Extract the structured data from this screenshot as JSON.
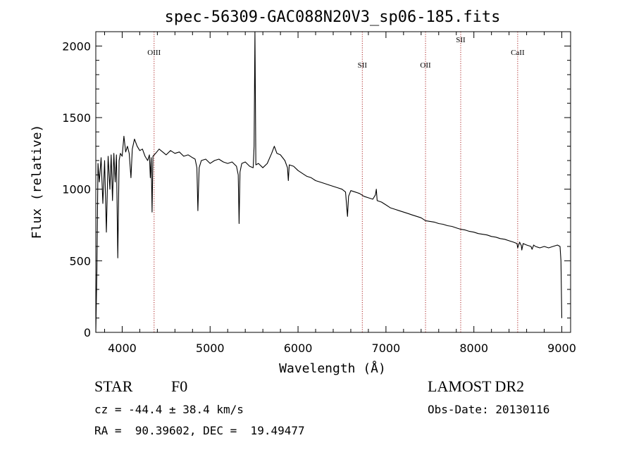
{
  "chart_data": {
    "type": "line",
    "title": "spec-56309-GAC088N20V3_sp06-185.fits",
    "xlabel": "Wavelength (Å)",
    "ylabel": "Flux (relative)",
    "xlim": [
      3700,
      9100
    ],
    "ylim": [
      0,
      2100
    ],
    "x_ticks": [
      4000,
      5000,
      6000,
      7000,
      8000,
      9000
    ],
    "y_ticks": [
      0,
      500,
      1000,
      1500,
      2000
    ],
    "grid": false,
    "series": [
      {
        "color": "#000000",
        "points": [
          [
            3700,
            0
          ],
          [
            3712,
            420
          ],
          [
            3725,
            1180
          ],
          [
            3740,
            1050
          ],
          [
            3760,
            1220
          ],
          [
            3780,
            900
          ],
          [
            3800,
            1200
          ],
          [
            3820,
            700
          ],
          [
            3840,
            1230
          ],
          [
            3860,
            1000
          ],
          [
            3875,
            1240
          ],
          [
            3890,
            920
          ],
          [
            3905,
            1250
          ],
          [
            3920,
            1050
          ],
          [
            3935,
            1240
          ],
          [
            3950,
            520
          ],
          [
            3965,
            1200
          ],
          [
            3980,
            1250
          ],
          [
            4000,
            1230
          ],
          [
            4020,
            1370
          ],
          [
            4040,
            1260
          ],
          [
            4060,
            1300
          ],
          [
            4080,
            1250
          ],
          [
            4100,
            1080
          ],
          [
            4115,
            1280
          ],
          [
            4140,
            1350
          ],
          [
            4170,
            1300
          ],
          [
            4200,
            1270
          ],
          [
            4230,
            1280
          ],
          [
            4260,
            1230
          ],
          [
            4290,
            1200
          ],
          [
            4310,
            1240
          ],
          [
            4320,
            1080
          ],
          [
            4330,
            1220
          ],
          [
            4340,
            840
          ],
          [
            4350,
            1230
          ],
          [
            4380,
            1250
          ],
          [
            4420,
            1280
          ],
          [
            4460,
            1260
          ],
          [
            4500,
            1240
          ],
          [
            4550,
            1270
          ],
          [
            4600,
            1250
          ],
          [
            4650,
            1260
          ],
          [
            4700,
            1230
          ],
          [
            4750,
            1240
          ],
          [
            4800,
            1220
          ],
          [
            4830,
            1210
          ],
          [
            4850,
            1150
          ],
          [
            4861,
            850
          ],
          [
            4875,
            1150
          ],
          [
            4900,
            1200
          ],
          [
            4950,
            1210
          ],
          [
            5000,
            1180
          ],
          [
            5050,
            1200
          ],
          [
            5100,
            1210
          ],
          [
            5150,
            1190
          ],
          [
            5200,
            1180
          ],
          [
            5250,
            1190
          ],
          [
            5300,
            1160
          ],
          [
            5320,
            1100
          ],
          [
            5330,
            760
          ],
          [
            5340,
            1120
          ],
          [
            5360,
            1180
          ],
          [
            5400,
            1190
          ],
          [
            5450,
            1160
          ],
          [
            5490,
            1150
          ],
          [
            5500,
            1300
          ],
          [
            5510,
            2100
          ],
          [
            5520,
            1170
          ],
          [
            5550,
            1180
          ],
          [
            5600,
            1150
          ],
          [
            5650,
            1180
          ],
          [
            5700,
            1250
          ],
          [
            5730,
            1300
          ],
          [
            5760,
            1250
          ],
          [
            5800,
            1240
          ],
          [
            5850,
            1200
          ],
          [
            5880,
            1150
          ],
          [
            5890,
            1060
          ],
          [
            5900,
            1170
          ],
          [
            5950,
            1160
          ],
          [
            6000,
            1130
          ],
          [
            6050,
            1110
          ],
          [
            6100,
            1090
          ],
          [
            6150,
            1080
          ],
          [
            6200,
            1060
          ],
          [
            6250,
            1050
          ],
          [
            6300,
            1040
          ],
          [
            6350,
            1030
          ],
          [
            6400,
            1020
          ],
          [
            6450,
            1010
          ],
          [
            6500,
            1000
          ],
          [
            6540,
            980
          ],
          [
            6555,
            870
          ],
          [
            6563,
            810
          ],
          [
            6575,
            950
          ],
          [
            6600,
            990
          ],
          [
            6650,
            980
          ],
          [
            6700,
            970
          ],
          [
            6750,
            950
          ],
          [
            6800,
            940
          ],
          [
            6850,
            930
          ],
          [
            6880,
            960
          ],
          [
            6890,
            1000
          ],
          [
            6900,
            920
          ],
          [
            6950,
            910
          ],
          [
            7000,
            890
          ],
          [
            7050,
            870
          ],
          [
            7100,
            860
          ],
          [
            7150,
            850
          ],
          [
            7200,
            840
          ],
          [
            7250,
            830
          ],
          [
            7300,
            820
          ],
          [
            7350,
            810
          ],
          [
            7400,
            800
          ],
          [
            7450,
            780
          ],
          [
            7500,
            775
          ],
          [
            7550,
            770
          ],
          [
            7600,
            760
          ],
          [
            7650,
            755
          ],
          [
            7700,
            745
          ],
          [
            7750,
            740
          ],
          [
            7800,
            730
          ],
          [
            7850,
            720
          ],
          [
            7900,
            715
          ],
          [
            7950,
            705
          ],
          [
            8000,
            700
          ],
          [
            8050,
            690
          ],
          [
            8100,
            685
          ],
          [
            8150,
            680
          ],
          [
            8200,
            670
          ],
          [
            8250,
            665
          ],
          [
            8300,
            655
          ],
          [
            8350,
            650
          ],
          [
            8400,
            640
          ],
          [
            8450,
            630
          ],
          [
            8490,
            620
          ],
          [
            8498,
            590
          ],
          [
            8520,
            630
          ],
          [
            8540,
            605
          ],
          [
            8545,
            575
          ],
          [
            8560,
            620
          ],
          [
            8600,
            610
          ],
          [
            8650,
            600
          ],
          [
            8662,
            580
          ],
          [
            8680,
            610
          ],
          [
            8700,
            600
          ],
          [
            8750,
            590
          ],
          [
            8800,
            600
          ],
          [
            8850,
            590
          ],
          [
            8900,
            600
          ],
          [
            8950,
            610
          ],
          [
            8980,
            600
          ],
          [
            8990,
            500
          ],
          [
            9000,
            100
          ]
        ]
      }
    ],
    "lines": [
      {
        "label": "OIII",
        "x": 4363,
        "color": "#aa2222",
        "label_row": 1
      },
      {
        "label": "SII",
        "x": 6731,
        "color": "#aa2222",
        "label_row": 2
      },
      {
        "label": "OII",
        "x": 7450,
        "color": "#aa2222",
        "label_row": 2
      },
      {
        "label": "SII",
        "x": 7850,
        "color": "#aa2222",
        "label_row": 0
      },
      {
        "label": "CaII",
        "x": 8498,
        "color": "#aa2222",
        "label_row": 1
      }
    ]
  },
  "footer": {
    "class_label": "STAR",
    "subclass": "F0",
    "survey": "LAMOST DR2",
    "cz_text": "cz = -44.4 ± 38.4 km/s",
    "obs_date_text": "Obs-Date: 20130116",
    "coords_text": "RA =  90.39602, DEC =  19.49477"
  }
}
